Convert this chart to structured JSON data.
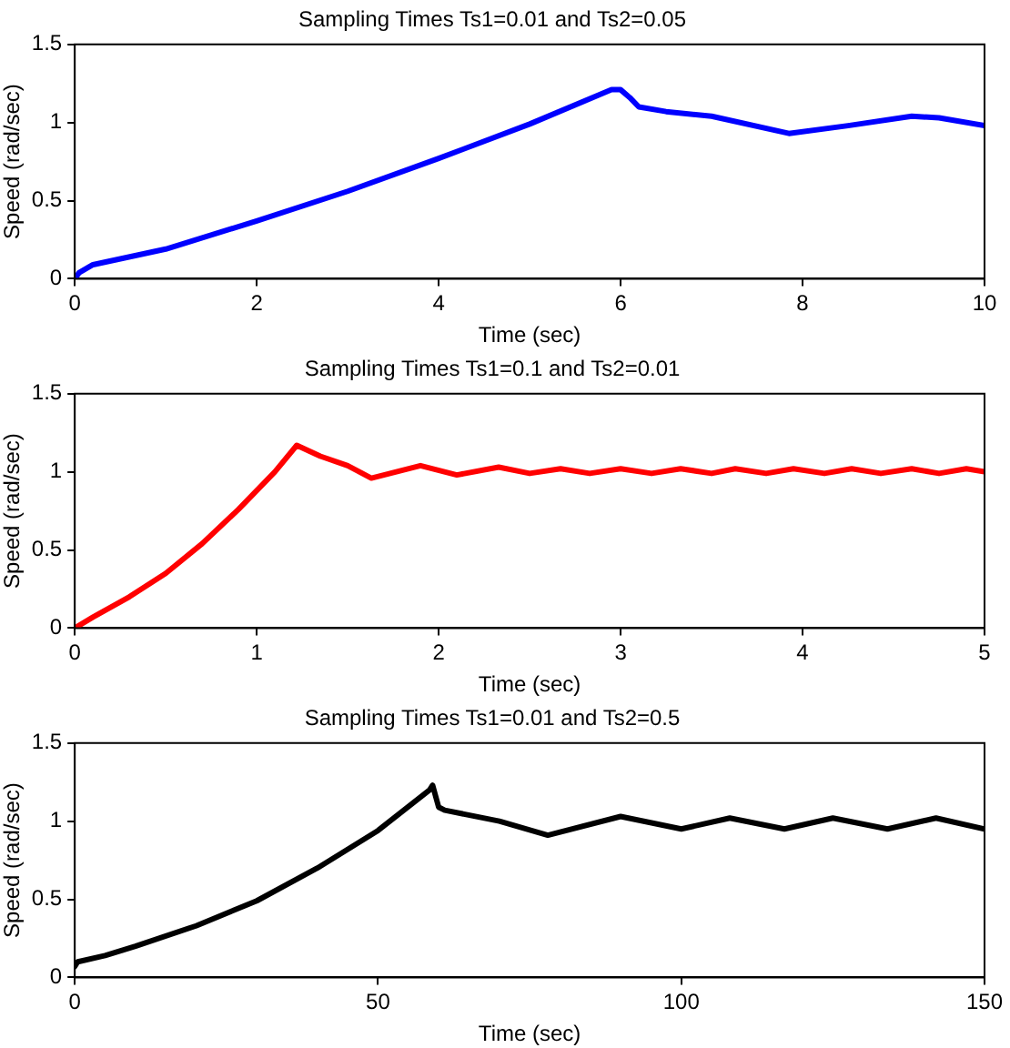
{
  "chart_data": [
    {
      "type": "line",
      "title": "Sampling Times Ts1=0.01 and Ts2=0.05",
      "xlabel": "Time (sec)",
      "ylabel": "Speed (rad/sec)",
      "xlim": [
        0,
        10
      ],
      "xticks": [
        0,
        2,
        4,
        6,
        8,
        10
      ],
      "ylim": [
        0,
        1.5
      ],
      "yticks": [
        0,
        0.5,
        1,
        1.5
      ],
      "legend": false,
      "marker": "none",
      "series": [
        {
          "color": "#0000ff",
          "x": [
            0,
            0.05,
            0.2,
            1,
            2,
            3,
            4,
            5,
            5.9,
            6.0,
            6.1,
            6.2,
            6.5,
            7,
            7.85,
            8.5,
            9.2,
            9.5,
            10
          ],
          "values": [
            0,
            0.04,
            0.09,
            0.19,
            0.37,
            0.56,
            0.77,
            0.99,
            1.21,
            1.21,
            1.16,
            1.1,
            1.07,
            1.04,
            0.93,
            0.98,
            1.04,
            1.03,
            0.98
          ]
        }
      ]
    },
    {
      "type": "line",
      "title": "Sampling Times Ts1=0.1 and Ts2=0.01",
      "xlabel": "Time (sec)",
      "ylabel": "Speed (rad/sec)",
      "xlim": [
        0,
        5
      ],
      "xticks": [
        0,
        1,
        2,
        3,
        4,
        5
      ],
      "ylim": [
        0,
        1.5
      ],
      "yticks": [
        0,
        0.5,
        1,
        1.5
      ],
      "legend": false,
      "marker": "none",
      "series": [
        {
          "color": "#ff0000",
          "x": [
            0,
            0.1,
            0.3,
            0.5,
            0.7,
            0.9,
            1.1,
            1.22,
            1.35,
            1.5,
            1.63,
            1.9,
            2.1,
            2.33,
            2.5,
            2.67,
            2.83,
            3.0,
            3.17,
            3.33,
            3.5,
            3.63,
            3.8,
            3.95,
            4.12,
            4.27,
            4.43,
            4.6,
            4.75,
            4.9,
            5
          ],
          "values": [
            0,
            0.07,
            0.2,
            0.35,
            0.54,
            0.76,
            1.0,
            1.17,
            1.1,
            1.04,
            0.96,
            1.04,
            0.98,
            1.03,
            0.99,
            1.02,
            0.99,
            1.02,
            0.99,
            1.02,
            0.99,
            1.02,
            0.99,
            1.02,
            0.99,
            1.02,
            0.99,
            1.02,
            0.99,
            1.02,
            1.0
          ]
        }
      ]
    },
    {
      "type": "line",
      "title": "Sampling Times Ts1=0.01 and Ts2=0.5",
      "xlabel": "Time (sec)",
      "ylabel": "Speed (rad/sec)",
      "xlim": [
        0,
        150
      ],
      "xticks": [
        0,
        50,
        100,
        150
      ],
      "ylim": [
        0,
        1.5
      ],
      "yticks": [
        0,
        0.5,
        1,
        1.5
      ],
      "legend": false,
      "marker": "none",
      "series": [
        {
          "color": "#000000",
          "x": [
            0,
            0.5,
            5,
            10,
            20,
            30,
            40,
            50,
            58.5,
            59,
            60,
            61,
            70,
            78,
            90,
            100,
            108,
            117,
            125,
            134,
            142,
            150
          ],
          "values": [
            0.07,
            0.1,
            0.14,
            0.2,
            0.33,
            0.49,
            0.7,
            0.94,
            1.2,
            1.23,
            1.09,
            1.07,
            1.0,
            0.91,
            1.03,
            0.95,
            1.02,
            0.95,
            1.02,
            0.95,
            1.02,
            0.95
          ]
        }
      ]
    }
  ]
}
